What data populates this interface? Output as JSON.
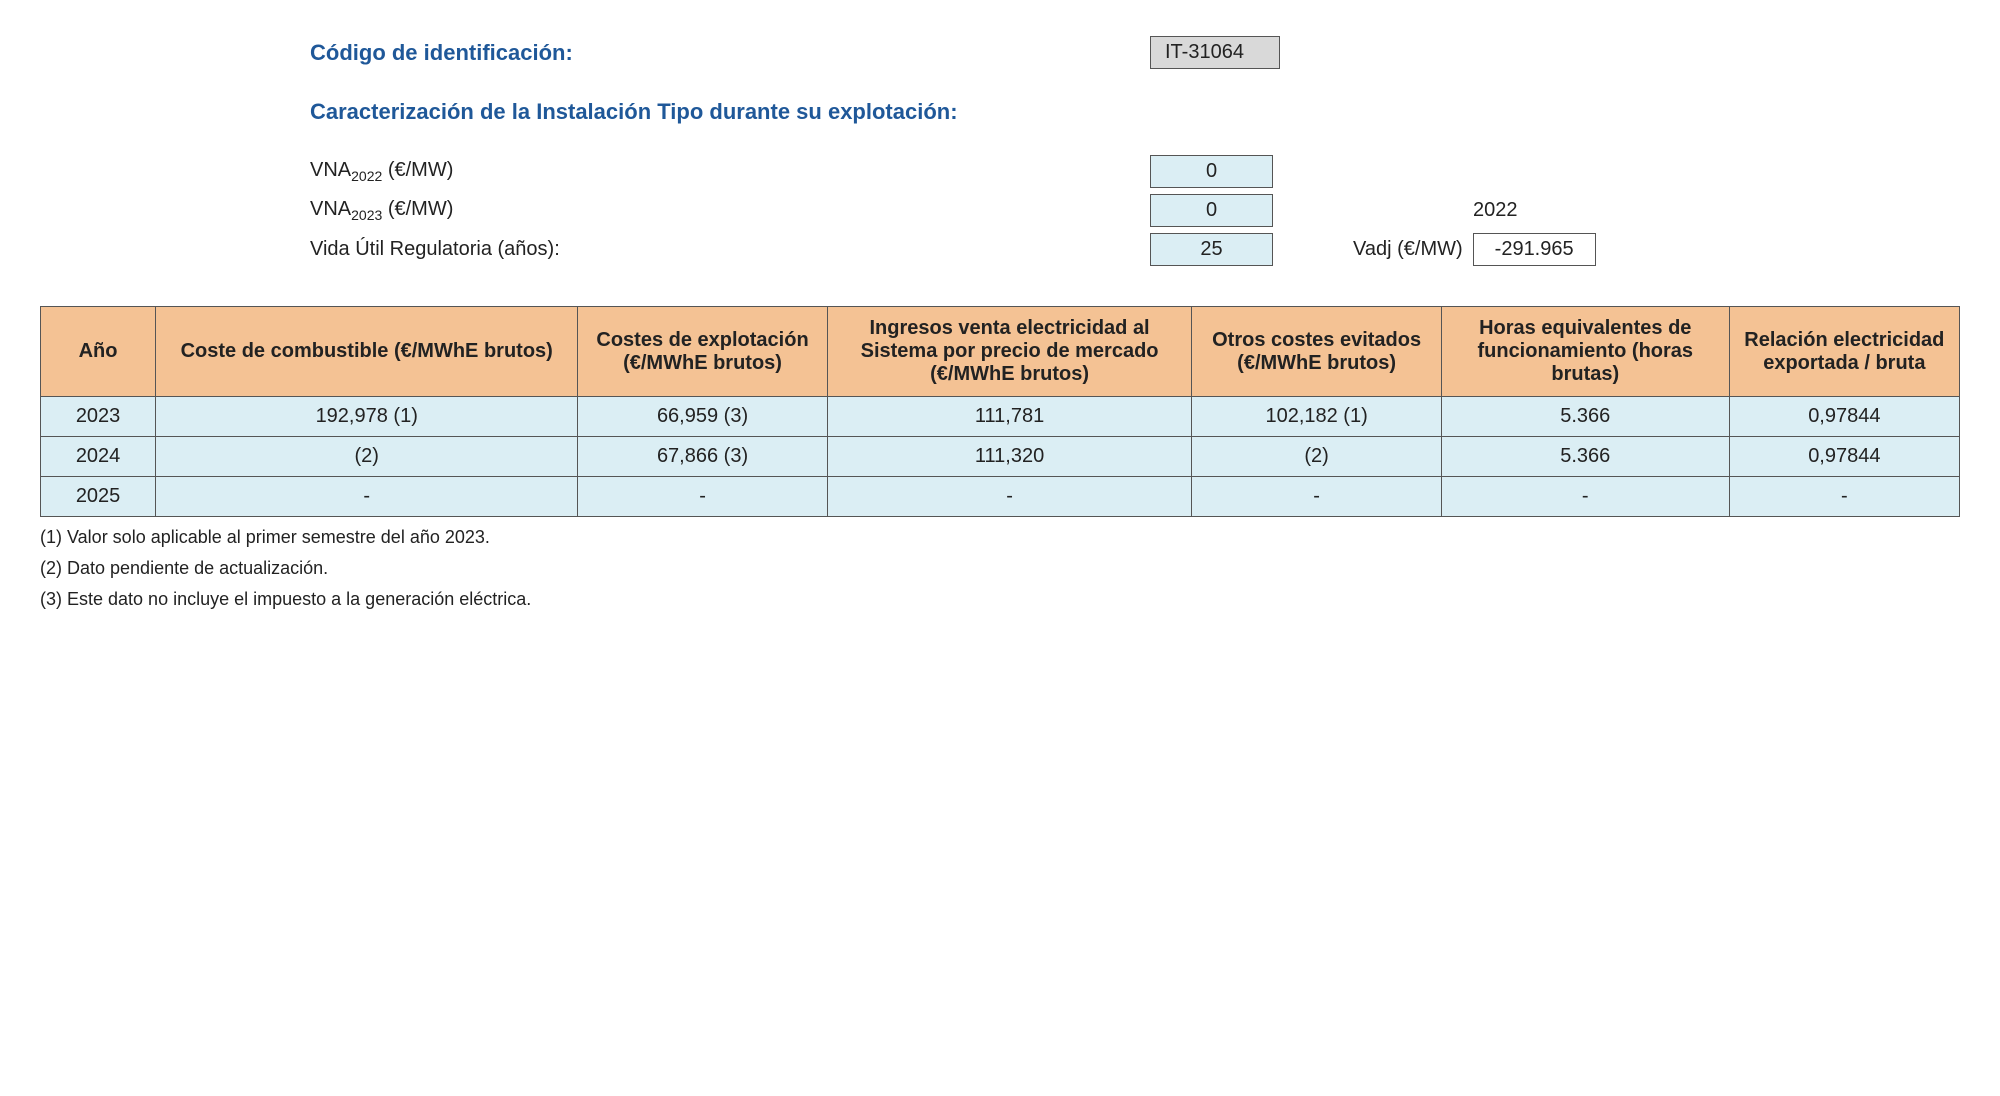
{
  "header": {
    "id_label": "Código de identificación:",
    "id_value": "IT-31064",
    "subtitle": "Caracterización de la Instalación Tipo durante su explotación:"
  },
  "params": {
    "vna2022_label": "VNA",
    "vna2022_sub": "2022",
    "vna_unit": " (€/MW)",
    "vna2022_value": "0",
    "vna2023_label": "VNA",
    "vna2023_sub": "2023",
    "vna2023_value": "0",
    "side_year": "2022",
    "life_label": "Vida Útil Regulatoria (años):",
    "life_value": "25",
    "vadj_label": "Vadj (€/MW)",
    "vadj_value": "-291.965"
  },
  "table": {
    "columns": [
      "Año",
      "Coste de combustible (€/MWhE brutos)",
      "Costes de explotación (€/MWhE brutos)",
      "Ingresos venta electricidad al Sistema por precio de mercado (€/MWhE brutos)",
      "Otros costes evitados (€/MWhE brutos)",
      "Horas equivalentes de funcionamiento (horas brutas)",
      "Relación electricidad exportada / bruta"
    ],
    "col_widths": [
      "6%",
      "22%",
      "13%",
      "19%",
      "13%",
      "15%",
      "12%"
    ],
    "rows": [
      [
        "2023",
        "192,978 (1)",
        "66,959 (3)",
        "111,781",
        "102,182 (1)",
        "5.366",
        "0,97844"
      ],
      [
        "2024",
        "(2)",
        "67,866 (3)",
        "111,320",
        "(2)",
        "5.366",
        "0,97844"
      ],
      [
        "2025",
        "-",
        "-",
        "-",
        "-",
        "-",
        "-"
      ]
    ]
  },
  "footnotes": [
    "(1) Valor solo aplicable al primer semestre del año 2023.",
    "(2) Dato pendiente de actualización.",
    "(3) Este dato no incluye el impuesto a la generación eléctrica."
  ],
  "colors": {
    "header_bg": "#f4c294",
    "cell_bg": "#dbeef4",
    "id_bg": "#d9d9d9",
    "accent": "#1f5899"
  }
}
